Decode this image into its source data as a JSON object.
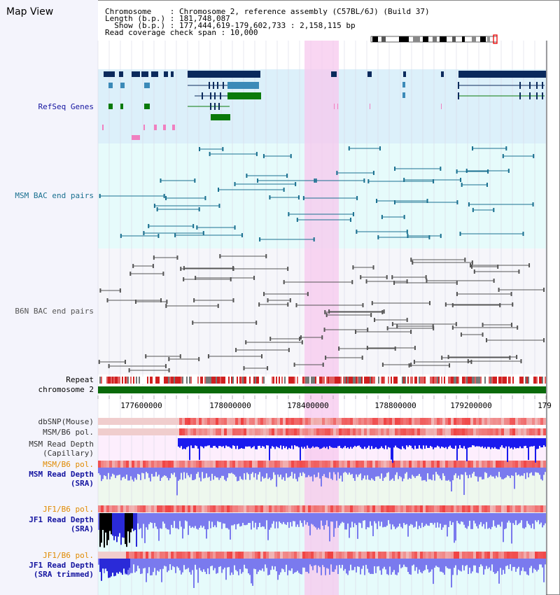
{
  "header": {
    "title": "Map View",
    "info_lines": [
      "Chromosome    : Chromosome 2, reference assembly (C57BL/6J) (Build 37)",
      "Length (b.p.) : 181,748,087",
      "  Show (b.p.) : 177,444,619-179,602,733 : 2,158,115 bp",
      "Read coverage check span : 10,000"
    ]
  },
  "tracks": {
    "refseq": "RefSeq Genes",
    "msm_bac": "MSM BAC end pairs",
    "b6n_bac": "B6N BAC end pairs",
    "repeat": "Repeat",
    "chromosome": "chromosome 2",
    "dbsnp": "dbSNP(Mouse)",
    "msm_b6_pol_1": "MSM/B6 pol.",
    "msm_depth_cap": "MSM Read Depth\n(Capillary)",
    "msm_b6_pol_2": "MSM/B6 pol.",
    "msm_depth_sra": "MSM Read Depth\n(SRA)",
    "jf1_b6_pol_1": "JF1/B6 pol.",
    "jf1_depth_sra": "JF1 Read Depth\n(SRA)",
    "jf1_b6_pol_2": "JF1/B6 pol.",
    "jf1_depth_trim": "JF1 Read Depth\n(SRA trimmed)"
  },
  "ruler": {
    "ticks": [
      "177600000",
      "178000000",
      "178400000",
      "178800000",
      "179200000",
      "179"
    ]
  },
  "colors": {
    "gene_dark": "#0b2a5c",
    "gene_blue": "#3b8ab8",
    "gene_green": "#0a7a0a",
    "msm_bac": "#1a7090",
    "b6n_bac": "#555555",
    "highlight": "#f7c8ee",
    "depth_blue": "#1a1aee",
    "depth_light": "#7a7aee",
    "label_blue": "#1414a0",
    "label_orange": "#e08a00"
  }
}
